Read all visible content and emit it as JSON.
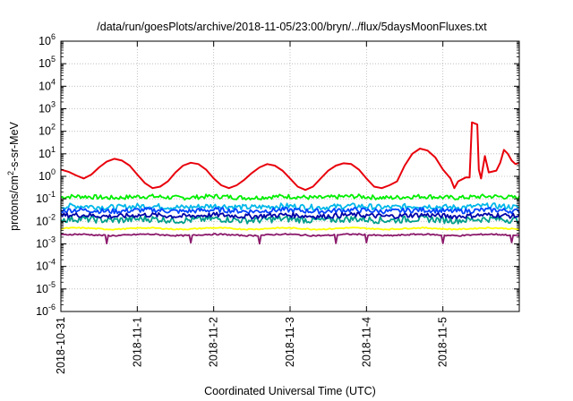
{
  "chart_data": {
    "type": "line",
    "title": "/data/run/goesPlots/archive/2018-11-05/23:00/bryn/../flux/5daysMoonFluxes.txt",
    "xlabel": "Coordinated Universal Time (UTC)",
    "ylabel": {
      "base": "protons/cm",
      "sup": "2",
      "rest": "-s-sr-MeV"
    },
    "yscale": "log",
    "ylim_exp": [
      -6,
      6
    ],
    "ytick_exps": [
      "-6",
      "-5",
      "-4",
      "-3",
      "-2",
      "-1",
      "0",
      "1",
      "2",
      "3",
      "4",
      "5",
      "6"
    ],
    "ytick_base": "10",
    "xlim_days": [
      0,
      6
    ],
    "xticks": [
      {
        "label": "2018-10-31",
        "day": 0
      },
      {
        "label": "2018-11-1",
        "day": 1
      },
      {
        "label": "2018-11-2",
        "day": 2
      },
      {
        "label": "2018-11-3",
        "day": 3
      },
      {
        "label": "2018-11-4",
        "day": 4
      },
      {
        "label": "2018-11-5",
        "day": 5
      }
    ],
    "grid": true,
    "series": [
      {
        "color": "#e8000b",
        "points": [
          [
            0.0,
            2
          ],
          [
            0.1,
            1.6
          ],
          [
            0.2,
            1.1
          ],
          [
            0.3,
            0.8
          ],
          [
            0.4,
            1.2
          ],
          [
            0.5,
            2.5
          ],
          [
            0.6,
            4.5
          ],
          [
            0.7,
            6
          ],
          [
            0.8,
            5
          ],
          [
            0.9,
            3
          ],
          [
            1.0,
            1.2
          ],
          [
            1.1,
            0.5
          ],
          [
            1.2,
            0.3
          ],
          [
            1.3,
            0.35
          ],
          [
            1.4,
            0.6
          ],
          [
            1.5,
            1.5
          ],
          [
            1.6,
            3
          ],
          [
            1.7,
            4
          ],
          [
            1.8,
            3.5
          ],
          [
            1.9,
            2
          ],
          [
            2.0,
            0.8
          ],
          [
            2.1,
            0.4
          ],
          [
            2.2,
            0.3
          ],
          [
            2.3,
            0.4
          ],
          [
            2.4,
            0.7
          ],
          [
            2.5,
            1.4
          ],
          [
            2.6,
            2.5
          ],
          [
            2.7,
            3.5
          ],
          [
            2.8,
            3
          ],
          [
            2.9,
            1.8
          ],
          [
            3.0,
            0.8
          ],
          [
            3.1,
            0.35
          ],
          [
            3.2,
            0.25
          ],
          [
            3.3,
            0.35
          ],
          [
            3.4,
            0.8
          ],
          [
            3.5,
            1.8
          ],
          [
            3.6,
            3
          ],
          [
            3.7,
            3.8
          ],
          [
            3.8,
            3.5
          ],
          [
            3.9,
            2
          ],
          [
            4.0,
            0.8
          ],
          [
            4.1,
            0.35
          ],
          [
            4.2,
            0.3
          ],
          [
            4.3,
            0.4
          ],
          [
            4.4,
            0.6
          ],
          [
            4.5,
            3
          ],
          [
            4.6,
            10
          ],
          [
            4.7,
            17
          ],
          [
            4.8,
            14
          ],
          [
            4.9,
            7
          ],
          [
            5.0,
            2
          ],
          [
            5.1,
            0.8
          ],
          [
            5.15,
            0.3
          ],
          [
            5.2,
            0.6
          ],
          [
            5.3,
            0.9
          ],
          [
            5.35,
            0.9
          ],
          [
            5.38,
            250
          ],
          [
            5.45,
            200
          ],
          [
            5.47,
            2
          ],
          [
            5.5,
            0.8
          ],
          [
            5.55,
            8
          ],
          [
            5.6,
            1.5
          ],
          [
            5.7,
            1.8
          ],
          [
            5.75,
            4
          ],
          [
            5.8,
            15
          ],
          [
            5.85,
            10
          ],
          [
            5.9,
            5
          ],
          [
            5.95,
            3.5
          ],
          [
            6.0,
            4
          ]
        ]
      },
      {
        "color": "#00ee00",
        "base": 0.12,
        "amp": 0.2
      },
      {
        "color": "#00b8e8",
        "base": 0.045,
        "amp": 0.25
      },
      {
        "color": "#0044ff",
        "base": 0.03,
        "amp": 0.22
      },
      {
        "color": "#009e8c",
        "base": 0.012,
        "amp": 0.3
      },
      {
        "color": "#0000a8",
        "base": 0.018,
        "amp": 0.22
      },
      {
        "color": "#ffff00",
        "base": 0.0048,
        "amp": 0.05
      },
      {
        "color": "#8b1a6b",
        "base": 0.0025,
        "amp": 0.06,
        "dips": [
          0.6,
          1.7,
          2.6,
          3.6,
          4.0,
          5.0,
          5.9
        ]
      }
    ]
  }
}
